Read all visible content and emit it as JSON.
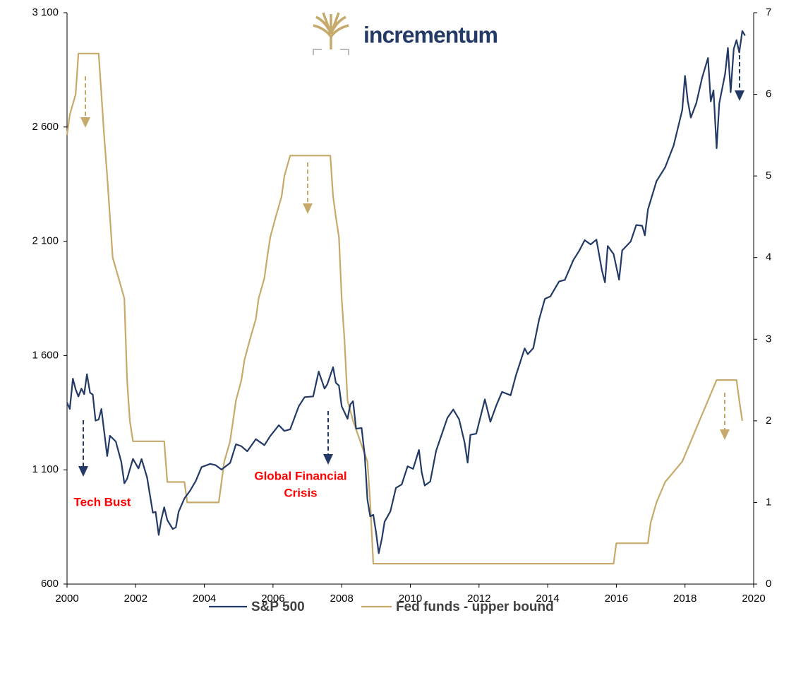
{
  "chart_data": {
    "type": "line",
    "logo_text": "incrementum",
    "annotations": [
      {
        "lines": [
          "Tech Bust"
        ]
      },
      {
        "lines": [
          "Global Financial",
          "Crisis"
        ]
      }
    ],
    "xlim": [
      2000,
      2020
    ],
    "xticks": [
      2000,
      2002,
      2004,
      2006,
      2008,
      2010,
      2012,
      2014,
      2016,
      2018,
      2020
    ],
    "ylim": [
      600,
      3100
    ],
    "yticks": [
      600,
      {
        "value": 1100,
        "label": "1 100"
      },
      {
        "value": 1600,
        "label": "1 600"
      },
      {
        "value": 2100,
        "label": "2 100"
      },
      {
        "value": 2600,
        "label": "2 600"
      },
      {
        "value": 3100,
        "label": "3 100"
      }
    ],
    "y2lim": [
      0,
      7
    ],
    "y2ticks": [
      0,
      1,
      2,
      3,
      4,
      5,
      6,
      7
    ],
    "grid": false,
    "legend": "bottom",
    "series": [
      {
        "name": "S&P 500",
        "color": "#243a66",
        "x": [
          2000.0,
          2000.08,
          2000.17,
          2000.25,
          2000.33,
          2000.42,
          2000.5,
          2000.58,
          2000.67,
          2000.75,
          2000.83,
          2000.92,
          2001.0,
          2001.17,
          2001.25,
          2001.42,
          2001.58,
          2001.67,
          2001.75,
          2001.92,
          2002.08,
          2002.17,
          2002.33,
          2002.5,
          2002.58,
          2002.67,
          2002.75,
          2002.83,
          2002.92,
          2003.08,
          2003.17,
          2003.25,
          2003.42,
          2003.58,
          2003.75,
          2003.92,
          2004.17,
          2004.33,
          2004.5,
          2004.75,
          2004.92,
          2005.08,
          2005.25,
          2005.5,
          2005.75,
          2005.92,
          2006.17,
          2006.33,
          2006.5,
          2006.75,
          2006.92,
          2007.17,
          2007.33,
          2007.5,
          2007.58,
          2007.75,
          2007.83,
          2007.92,
          2008.0,
          2008.17,
          2008.25,
          2008.33,
          2008.42,
          2008.58,
          2008.67,
          2008.75,
          2008.83,
          2008.92,
          2009.0,
          2009.08,
          2009.17,
          2009.25,
          2009.42,
          2009.58,
          2009.75,
          2009.92,
          2010.08,
          2010.25,
          2010.33,
          2010.42,
          2010.58,
          2010.75,
          2010.92,
          2011.08,
          2011.25,
          2011.42,
          2011.58,
          2011.67,
          2011.75,
          2011.92,
          2012.17,
          2012.33,
          2012.5,
          2012.67,
          2012.92,
          2013.08,
          2013.33,
          2013.42,
          2013.58,
          2013.75,
          2013.92,
          2014.08,
          2014.33,
          2014.5,
          2014.75,
          2014.92,
          2015.08,
          2015.25,
          2015.42,
          2015.58,
          2015.67,
          2015.75,
          2015.92,
          2016.08,
          2016.17,
          2016.42,
          2016.58,
          2016.75,
          2016.83,
          2016.92,
          2017.17,
          2017.42,
          2017.67,
          2017.92,
          2018.0,
          2018.08,
          2018.17,
          2018.33,
          2018.5,
          2018.67,
          2018.75,
          2018.83,
          2018.92,
          2019.0,
          2019.17,
          2019.25,
          2019.33,
          2019.42,
          2019.5,
          2019.58,
          2019.67,
          2019.75
        ],
        "values": [
          1394,
          1366,
          1499,
          1452,
          1421,
          1455,
          1431,
          1518,
          1437,
          1429,
          1315,
          1320,
          1366,
          1160,
          1249,
          1224,
          1134,
          1041,
          1060,
          1148,
          1106,
          1147,
          1067,
          912,
          916,
          815,
          886,
          936,
          880,
          841,
          848,
          916,
          975,
          1008,
          1051,
          1112,
          1126,
          1120,
          1101,
          1130,
          1212,
          1203,
          1181,
          1234,
          1208,
          1248,
          1295,
          1270,
          1277,
          1378,
          1418,
          1421,
          1530,
          1455,
          1474,
          1549,
          1481,
          1468,
          1378,
          1323,
          1386,
          1400,
          1280,
          1283,
          1165,
          969,
          896,
          903,
          826,
          735,
          798,
          873,
          919,
          1021,
          1036,
          1115,
          1104,
          1187,
          1089,
          1031,
          1049,
          1183,
          1258,
          1327,
          1364,
          1321,
          1219,
          1131,
          1253,
          1258,
          1408,
          1310,
          1380,
          1441,
          1426,
          1515,
          1631,
          1606,
          1632,
          1757,
          1848,
          1859,
          1924,
          1931,
          2018,
          2059,
          2105,
          2086,
          2107,
          1972,
          1920,
          2079,
          2044,
          1932,
          2060,
          2099,
          2171,
          2168,
          2126,
          2239,
          2363,
          2423,
          2519,
          2674,
          2824,
          2714,
          2641,
          2705,
          2816,
          2902,
          2712,
          2760,
          2507,
          2704,
          2834,
          2946,
          2752,
          2942,
          2980,
          2926,
          3020,
          3000
        ]
      },
      {
        "name": "Fed funds - upper bound",
        "color": "#c6aa6b",
        "axis": "y2",
        "x": [
          2000.0,
          2000.08,
          2000.25,
          2000.33,
          2000.92,
          2001.0,
          2001.08,
          2001.17,
          2001.25,
          2001.33,
          2001.5,
          2001.67,
          2001.75,
          2001.83,
          2001.92,
          2002.83,
          2002.92,
          2003.42,
          2003.5,
          2004.42,
          2004.5,
          2004.58,
          2004.75,
          2004.92,
          2005.08,
          2005.17,
          2005.33,
          2005.5,
          2005.58,
          2005.75,
          2005.83,
          2005.92,
          2006.08,
          2006.25,
          2006.33,
          2006.5,
          2007.67,
          2007.75,
          2007.83,
          2007.92,
          2008.0,
          2008.08,
          2008.17,
          2008.33,
          2008.75,
          2008.83,
          2008.92,
          2015.92,
          2016.0,
          2016.92,
          2017.0,
          2017.17,
          2017.42,
          2017.92,
          2018.17,
          2018.42,
          2018.67,
          2018.92,
          2019.5,
          2019.58,
          2019.67
        ],
        "values": [
          5.5,
          5.75,
          6.0,
          6.5,
          6.5,
          6.0,
          5.5,
          5.0,
          4.5,
          4.0,
          3.75,
          3.5,
          2.5,
          2.0,
          1.75,
          1.75,
          1.25,
          1.25,
          1.0,
          1.0,
          1.25,
          1.5,
          1.75,
          2.25,
          2.5,
          2.75,
          3.0,
          3.25,
          3.5,
          3.75,
          4.0,
          4.25,
          4.5,
          4.75,
          5.0,
          5.25,
          5.25,
          4.75,
          4.5,
          4.25,
          3.5,
          3.0,
          2.25,
          2.0,
          1.5,
          1.0,
          0.25,
          0.25,
          0.5,
          0.5,
          0.75,
          1.0,
          1.25,
          1.5,
          1.75,
          2.0,
          2.25,
          2.5,
          2.5,
          2.25,
          2.0
        ]
      }
    ]
  }
}
